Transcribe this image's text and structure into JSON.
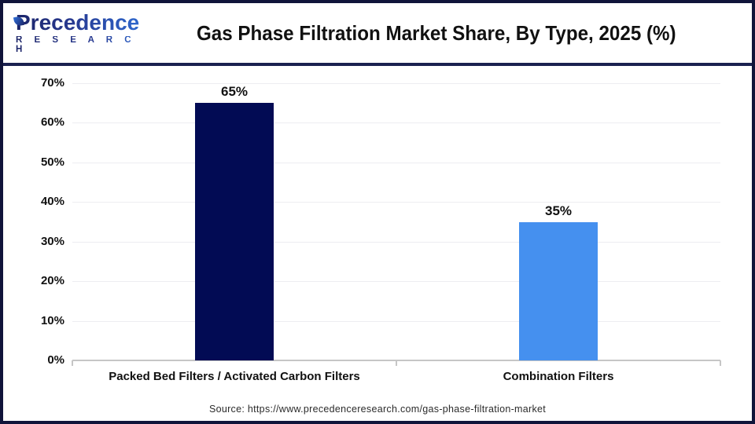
{
  "logo": {
    "name": "Precedence",
    "subname": "R E S E A R C H"
  },
  "header": {
    "title": "Gas Phase Filtration Market Share, By Type, 2025 (%)"
  },
  "chart_data": {
    "type": "bar",
    "title": "Gas Phase Filtration Market Share, By Type, 2025 (%)",
    "categories": [
      "Packed Bed Filters / Activated Carbon Filters",
      "Combination Filters"
    ],
    "values": [
      65,
      35
    ],
    "value_labels": [
      "65%",
      "35%"
    ],
    "bar_colors": [
      "#020b54",
      "#4590ef"
    ],
    "ylim": [
      0,
      70
    ],
    "ytick_step": 10,
    "ytick_labels": [
      "0%",
      "10%",
      "20%",
      "30%",
      "40%",
      "50%",
      "60%",
      "70%"
    ],
    "grid": true,
    "legend": "none",
    "xlabel": "",
    "ylabel": ""
  },
  "footer": {
    "source": "Source: https://www.precedenceresearch.com/gas-phase-filtration-market"
  },
  "colors": {
    "navy_bar": "#020b54",
    "blue_bar": "#4590ef",
    "border": "#10143a",
    "separator": "#1b2150",
    "gridline": "#ededf1",
    "axis_line": "#c6c6c6"
  }
}
